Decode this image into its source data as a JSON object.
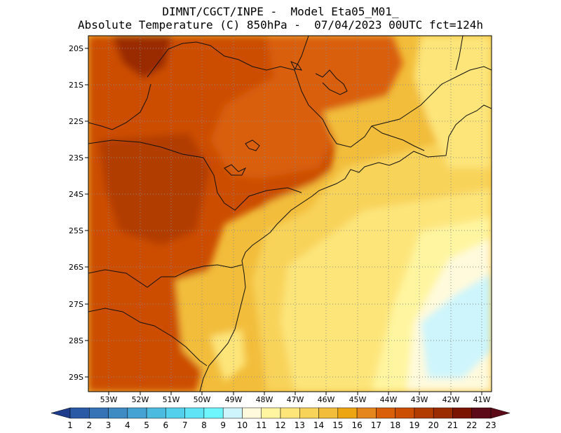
{
  "header": {
    "line1": "DIMNT/CGCT/INPE -  Model Eta05_M01_",
    "line2": "Absolute Temperature (C) 850hPa -  07/04/2023 00UTC fct=124h"
  },
  "map": {
    "lat_labels": [
      "20S",
      "21S",
      "22S",
      "23S",
      "24S",
      "25S",
      "26S",
      "27S",
      "28S",
      "29S"
    ],
    "lon_labels": [
      "53W",
      "52W",
      "51W",
      "50W",
      "49W",
      "48W",
      "47W",
      "46W",
      "45W",
      "44W",
      "43W",
      "42W",
      "41W"
    ]
  },
  "colorbar": {
    "labels": [
      "1",
      "2",
      "3",
      "4",
      "5",
      "6",
      "7",
      "8",
      "9",
      "10",
      "11",
      "12",
      "13",
      "14",
      "15",
      "16",
      "17",
      "18",
      "19",
      "20",
      "21",
      "22",
      "23"
    ],
    "colors": [
      "#1e3c8c",
      "#2a59a6",
      "#3573b6",
      "#3e8bc4",
      "#44a3d2",
      "#4bbbe0",
      "#53d1ec",
      "#5ee4f4",
      "#6ff6fd",
      "#cdf5fb",
      "#fffadc",
      "#fff5a0",
      "#fde57a",
      "#f8d35a",
      "#f2bd3a",
      "#eda512",
      "#e4861c",
      "#d95f08",
      "#cc4e00",
      "#b23c00",
      "#9a2c00",
      "#7a1400",
      "#5c0a18"
    ]
  }
}
